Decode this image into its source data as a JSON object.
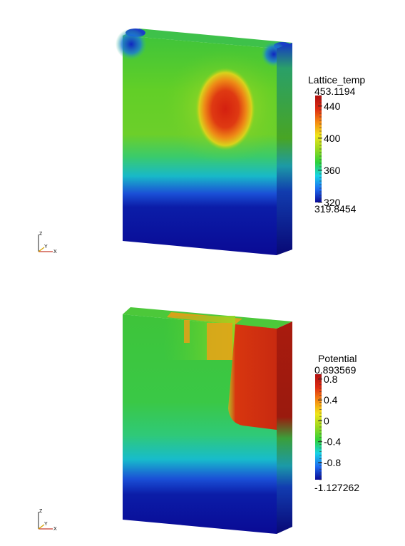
{
  "panels": [
    {
      "id": "lattice",
      "colorbar": {
        "title": "Lattice_temp",
        "max_label": "453.1194",
        "min_label": "319.8454",
        "max_value": 453.1194,
        "min_value": 319.8454,
        "ticks": [
          {
            "value": 440,
            "label": "440"
          },
          {
            "value": 400,
            "label": "400"
          },
          {
            "value": 360,
            "label": "360"
          },
          {
            "value": 320,
            "label": "320"
          }
        ]
      },
      "axes": {
        "z": "Z",
        "y": "Y",
        "x": "X"
      }
    },
    {
      "id": "potential",
      "colorbar": {
        "title": "Potential",
        "max_label": "0.893569",
        "min_label": "-1.127262",
        "max_value": 0.893569,
        "min_value": -1.127262,
        "ticks": [
          {
            "value": 0.8,
            "label": "0.8"
          },
          {
            "value": 0.4,
            "label": "0.4"
          },
          {
            "value": 0,
            "label": "0"
          },
          {
            "value": -0.4,
            "label": "-0.4"
          },
          {
            "value": -0.8,
            "label": "-0.8"
          }
        ]
      },
      "axes": {
        "z": "Z",
        "y": "Y",
        "x": "X"
      }
    }
  ],
  "colormap": [
    "#0a0a96",
    "#1e6bf0",
    "#17d3e6",
    "#2ed23a",
    "#9bd81f",
    "#f0e51a",
    "#f58a12",
    "#dd2b12",
    "#b01010"
  ]
}
